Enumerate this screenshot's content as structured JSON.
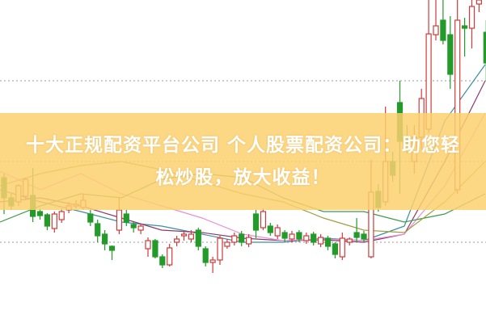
{
  "banner": {
    "line1": "十大正规配资平台公司 个人股票配资公司：助您轻",
    "line2": "松炒股，放大收益！"
  },
  "colors": {
    "up": "#d03a3a",
    "down": "#239a2a",
    "banner": "#fcd06e",
    "grid": "#999999"
  },
  "chart_data": {
    "type": "candlestick",
    "title": "",
    "xlabel": "",
    "ylabel": "",
    "ylim": [
      0,
      400
    ],
    "grid": "dotted horizontal lines",
    "gridlines": [
      100,
      200,
      300
    ],
    "candles": [
      [
        180,
        155,
        185,
        135
      ],
      [
        155,
        145,
        160,
        140
      ],
      [
        150,
        170,
        172,
        145
      ],
      [
        157,
        178,
        180,
        152
      ],
      [
        158,
        132,
        192,
        125
      ],
      [
        138,
        133,
        142,
        128
      ],
      [
        134,
        120,
        136,
        115
      ],
      [
        117,
        135,
        138,
        112
      ],
      [
        128,
        138,
        142,
        124
      ],
      [
        140,
        145,
        150,
        136
      ],
      [
        145,
        147,
        152,
        142
      ],
      [
        143,
        152,
        160,
        140
      ],
      [
        135,
        125,
        140,
        120
      ],
      [
        123,
        108,
        128,
        100
      ],
      [
        110,
        98,
        115,
        90
      ],
      [
        95,
        90,
        96,
        78
      ],
      [
        115,
        140,
        155,
        110
      ],
      [
        135,
        125,
        140,
        120
      ],
      [
        122,
        118,
        125,
        112
      ],
      [
        115,
        120,
        123,
        110
      ],
      [
        92,
        102,
        106,
        82
      ],
      [
        102,
        82,
        104,
        80
      ],
      [
        82,
        72,
        85,
        68
      ],
      [
        72,
        93,
        98,
        70
      ],
      [
        100,
        104,
        108,
        95
      ],
      [
        108,
        110,
        114,
        102
      ],
      [
        104,
        110,
        115,
        100
      ],
      [
        115,
        95,
        118,
        90
      ],
      [
        92,
        75,
        95,
        70
      ],
      [
        75,
        78,
        82,
        62
      ],
      [
        78,
        105,
        108,
        72
      ],
      [
        95,
        100,
        104,
        92
      ],
      [
        100,
        108,
        112,
        96
      ],
      [
        110,
        100,
        114,
        95
      ],
      [
        98,
        106,
        110,
        94
      ],
      [
        135,
        115,
        140,
        105
      ],
      [
        118,
        138,
        142,
        115
      ],
      [
        120,
        112,
        124,
        108
      ],
      [
        108,
        118,
        122,
        104
      ],
      [
        112,
        105,
        115,
        100
      ],
      [
        104,
        110,
        114,
        100
      ],
      [
        112,
        104,
        115,
        100
      ],
      [
        102,
        108,
        112,
        98
      ],
      [
        110,
        100,
        113,
        96
      ],
      [
        98,
        106,
        110,
        94
      ],
      [
        105,
        95,
        108,
        90
      ],
      [
        98,
        85,
        100,
        80
      ],
      [
        82,
        105,
        112,
        78
      ],
      [
        100,
        104,
        106,
        96
      ],
      [
        112,
        106,
        130,
        100
      ],
      [
        110,
        104,
        114,
        100
      ],
      [
        82,
        162,
        202,
        80
      ],
      [
        163,
        143,
        172,
        138
      ],
      [
        150,
        200,
        268,
        145
      ],
      [
        200,
        183,
        212,
        175
      ],
      [
        273,
        225,
        300,
        160
      ],
      [
        228,
        222,
        245,
        210
      ],
      [
        200,
        230,
        245,
        185
      ],
      [
        230,
        278,
        290,
        215
      ],
      [
        240,
        358,
        400,
        235
      ],
      [
        357,
        368,
        400,
        350
      ],
      [
        375,
        350,
        400,
        345
      ],
      [
        357,
        308,
        380,
        290
      ],
      [
        165,
        375,
        400,
        160
      ],
      [
        368,
        365,
        378,
        330
      ],
      [
        365,
        392,
        400,
        340
      ],
      [
        395,
        400,
        400,
        385
      ],
      [
        360,
        322,
        375,
        300
      ]
    ],
    "moving_averages": [
      {
        "color": "#3a8fa0",
        "values": [
          165,
          150,
          138,
          125,
          120,
          110,
          100,
          100,
          105,
          102,
          120,
          250,
          320
        ]
      },
      {
        "color": "#8a3a70",
        "values": [
          150,
          155,
          145,
          130,
          115,
          112,
          105,
          102,
          103,
          100,
          110,
          200,
          300
        ]
      },
      {
        "color": "#e890d8",
        "values": [
          188,
          165,
          185,
          160,
          145,
          130,
          110,
          102,
          104,
          102,
          110,
          170,
          260
        ]
      },
      {
        "color": "#3f9a4a",
        "values": [
          125,
          145,
          160,
          155,
          178,
          185,
          180,
          155,
          138,
          138,
          125,
          135,
          160
        ]
      },
      {
        "color": "#a0a040",
        "values": [
          170,
          185,
          195,
          200,
          190,
          175,
          160,
          150,
          130,
          115,
          112,
          150,
          200
        ]
      }
    ]
  }
}
